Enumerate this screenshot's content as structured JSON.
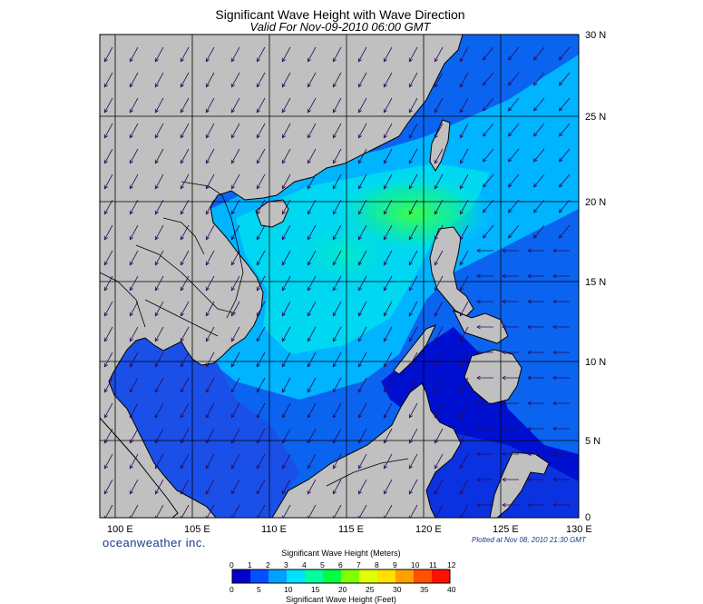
{
  "header": {
    "title": "Significant Wave Height with Wave Direction",
    "subtitle": "Valid For Nov-09-2010 06:00 GMT"
  },
  "map": {
    "lon_range": [
      99,
      130
    ],
    "lat_range": [
      0,
      30
    ],
    "lon_labels": [
      "100 E",
      "105 E",
      "110 E",
      "115 E",
      "120 E",
      "125 E",
      "130 E"
    ],
    "lat_labels": [
      "30 N",
      "25 N",
      "20 N",
      "15 N",
      "10 N",
      "5 N",
      "0"
    ],
    "land_color": "#c0c0c0",
    "grid_color": "#000000"
  },
  "footer": {
    "brand": "oceanweather inc.",
    "plotted": "Plotted at Nov 08, 2010 21:30 GMT"
  },
  "colorbar": {
    "title_meters": "Significant Wave Height (Meters)",
    "title_feet": "Significant Wave Height (Feet)",
    "meters_ticks": [
      "0",
      "1",
      "2",
      "3",
      "4",
      "5",
      "6",
      "7",
      "8",
      "9",
      "10",
      "11",
      "12"
    ],
    "feet_ticks": [
      "0",
      "5",
      "10",
      "15",
      "20",
      "25",
      "30",
      "35",
      "40"
    ],
    "colors": [
      "#0000c8",
      "#0050ff",
      "#00a0ff",
      "#00e0ff",
      "#00ffa0",
      "#00ff40",
      "#80ff00",
      "#e0ff00",
      "#ffe000",
      "#ffa000",
      "#ff5000",
      "#ff1000"
    ]
  }
}
